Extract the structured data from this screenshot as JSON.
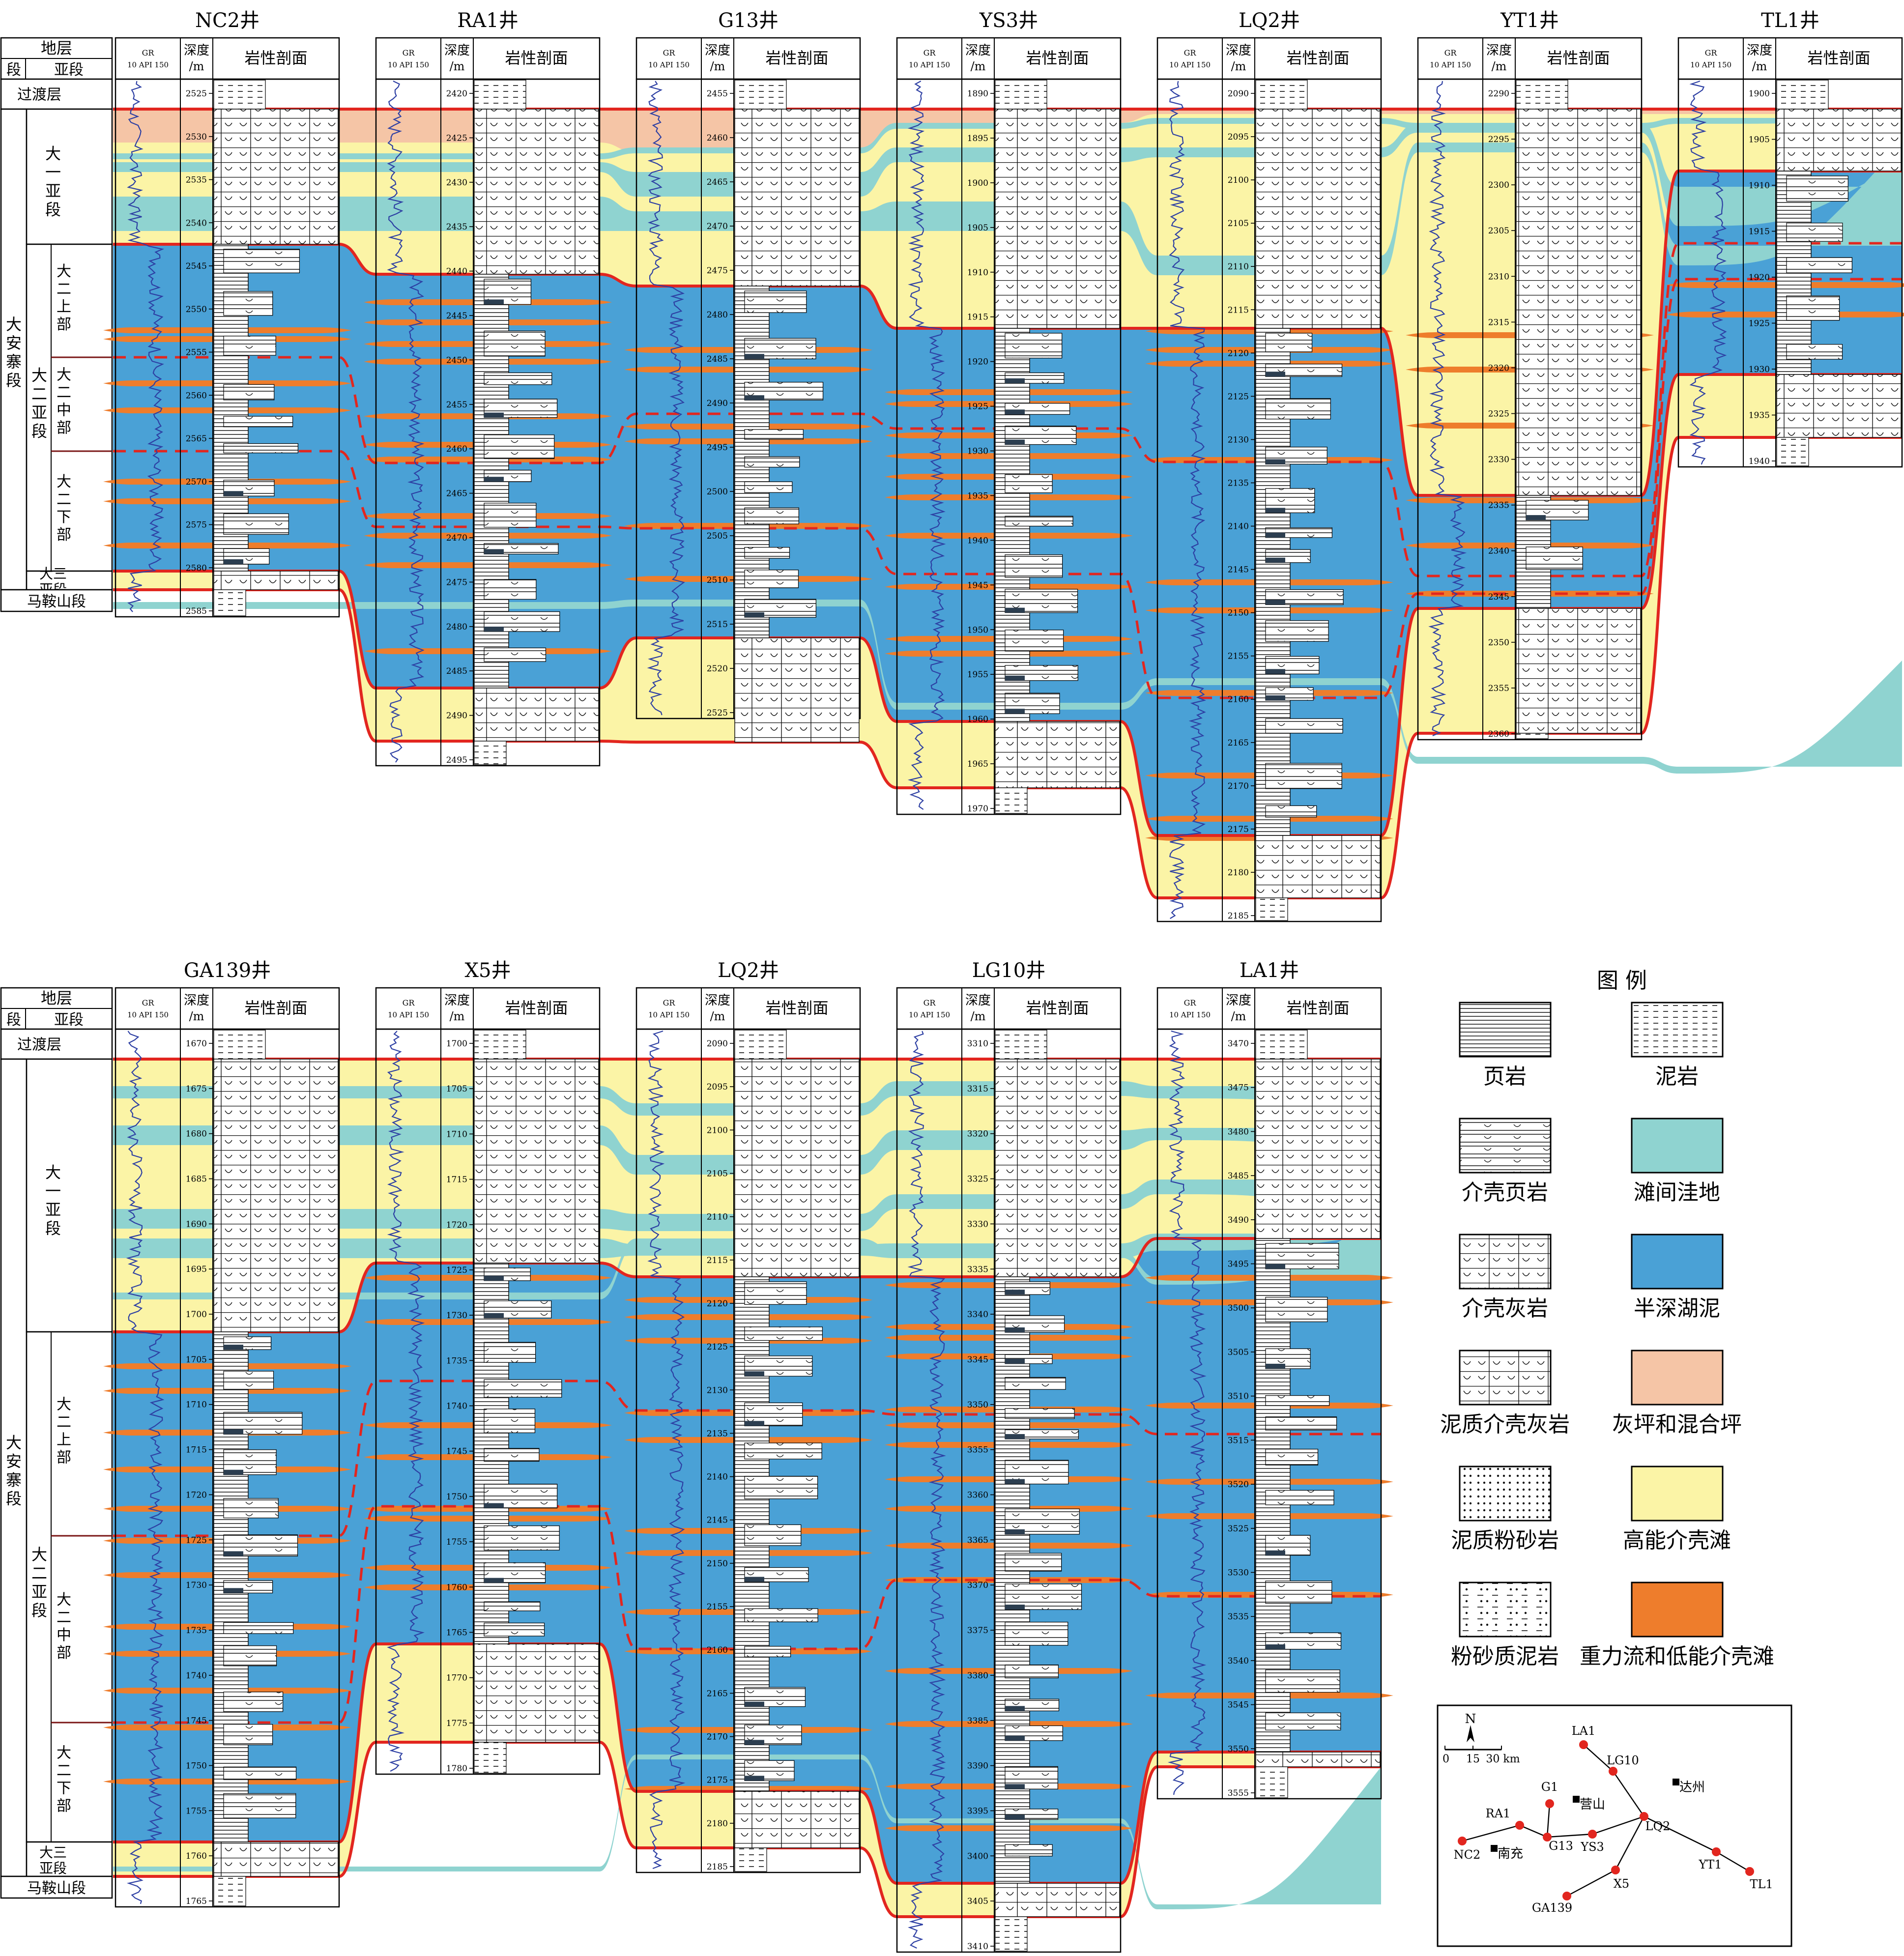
{
  "colors": {
    "interbank": "#8fd3d0",
    "semideep": "#4aa1d6",
    "dam": "#f5c5a6",
    "highbank": "#fbf4a6",
    "gravity": "#ee7d2c",
    "boundary": "#e2261f",
    "gr": "#2d3fa3"
  },
  "headers": {
    "strat": "地层",
    "segment": "段",
    "subsegment": "亚段",
    "gr": "GR",
    "gr_scale": "10  API  150",
    "depth": "深度",
    "depth_unit": "/m",
    "lith": "岩性剖面"
  },
  "strat_labels": {
    "transition": "过渡层",
    "daanzhai": "大安寨段",
    "da1": "大一亚段",
    "da2": "大二亚段",
    "da2_upper": "大二上部",
    "da2_middle": "大二中部",
    "da2_lower": "大二下部",
    "da3": "大三亚段",
    "maanshan": "马鞍山段"
  },
  "panels": [
    {
      "wells": [
        {
          "name": "NC2井",
          "ticks": [
            "2525",
            "2530",
            "2535",
            "2540",
            "2545",
            "2550",
            "2555",
            "2560",
            "2565",
            "2570",
            "2575",
            "2580",
            "2585"
          ]
        },
        {
          "name": "RA1井",
          "ticks": [
            "2420",
            "2425",
            "2430",
            "2435",
            "2440",
            "2445",
            "2450",
            "2455",
            "2460",
            "2465",
            "2470",
            "2475",
            "2480",
            "2485",
            "2490",
            "2495"
          ]
        },
        {
          "name": "G13井",
          "ticks": [
            "2455",
            "2460",
            "2465",
            "2470",
            "2475",
            "2480",
            "2485",
            "2490",
            "2495",
            "2500",
            "2505",
            "2510",
            "2515",
            "2520",
            "2525"
          ]
        },
        {
          "name": "YS3井",
          "ticks": [
            "1890",
            "1895",
            "1900",
            "1905",
            "1910",
            "1915",
            "1920",
            "1925",
            "1930",
            "1935",
            "1940",
            "1945",
            "1950",
            "1955",
            "1960",
            "1965",
            "1970"
          ]
        },
        {
          "name": "LQ2井",
          "ticks": [
            "2090",
            "2095",
            "2100",
            "2105",
            "2110",
            "2115",
            "2120",
            "2125",
            "2130",
            "2135",
            "2140",
            "2145",
            "2150",
            "2155",
            "2160",
            "2165",
            "2170",
            "2175",
            "2180",
            "2185"
          ]
        },
        {
          "name": "YT1井",
          "ticks": [
            "2290",
            "2295",
            "2300",
            "2305",
            "2310",
            "2315",
            "2320",
            "2325",
            "2330",
            "2335",
            "2340",
            "2345",
            "2350",
            "2355",
            "2360"
          ]
        },
        {
          "name": "TL1井",
          "ticks": [
            "1900",
            "1905",
            "1910",
            "1915",
            "1920",
            "1925",
            "1930",
            "1935",
            "1940"
          ]
        }
      ]
    },
    {
      "wells": [
        {
          "name": "GA139井",
          "ticks": [
            "1670",
            "1675",
            "1680",
            "1685",
            "1690",
            "1695",
            "1700",
            "1705",
            "1710",
            "1715",
            "1720",
            "1725",
            "1730",
            "1735",
            "1740",
            "1745",
            "1750",
            "1755",
            "1760",
            "1765"
          ]
        },
        {
          "name": "X5井",
          "ticks": [
            "1700",
            "1705",
            "1710",
            "1715",
            "1720",
            "1725",
            "1730",
            "1735",
            "1740",
            "1745",
            "1750",
            "1755",
            "1760",
            "1765",
            "1770",
            "1775",
            "1780"
          ]
        },
        {
          "name": "LQ2井",
          "ticks": [
            "2090",
            "2095",
            "2100",
            "2105",
            "2110",
            "2115",
            "2120",
            "2125",
            "2130",
            "2135",
            "2140",
            "2145",
            "2150",
            "2155",
            "2160",
            "2165",
            "2170",
            "2175",
            "2180",
            "2185"
          ]
        },
        {
          "name": "LG10井",
          "ticks": [
            "3310",
            "3315",
            "3320",
            "3325",
            "3330",
            "3335",
            "3340",
            "3345",
            "3350",
            "3355",
            "3360",
            "3365",
            "3370",
            "3375",
            "3380",
            "3385",
            "3390",
            "3395",
            "3400",
            "3405",
            "3410"
          ]
        },
        {
          "name": "LA1井",
          "ticks": [
            "3470",
            "3475",
            "3480",
            "3485",
            "3490",
            "3495",
            "3500",
            "3505",
            "3510",
            "3515",
            "3520",
            "3525",
            "3530",
            "3535",
            "3540",
            "3545",
            "3550",
            "3555"
          ]
        }
      ]
    }
  ],
  "legend": {
    "title": "图 例",
    "items": [
      {
        "label": "页岩",
        "kind": "shale"
      },
      {
        "label": "泥岩",
        "kind": "mudstone"
      },
      {
        "label": "介壳页岩",
        "kind": "shellshale"
      },
      {
        "label": "滩间洼地",
        "kind": "interbank"
      },
      {
        "label": "介壳灰岩",
        "kind": "shelllime"
      },
      {
        "label": "半深湖泥",
        "kind": "semideep"
      },
      {
        "label": "泥质介壳灰岩",
        "kind": "muddylime"
      },
      {
        "label": "灰坪和混合坪",
        "kind": "dam"
      },
      {
        "label": "泥质粉砂岩",
        "kind": "muddysilt"
      },
      {
        "label": "高能介壳滩",
        "kind": "highbank"
      },
      {
        "label": "粉砂质泥岩",
        "kind": "siltymud"
      },
      {
        "label": "重力流和低能介壳滩",
        "kind": "gravity"
      }
    ]
  },
  "map": {
    "north": "N",
    "scale_labels": [
      "0",
      "15",
      "30 km"
    ],
    "wells": [
      "LA1",
      "LG10",
      "G1",
      "RA1",
      "G13",
      "YS3",
      "LQ2",
      "YT1",
      "NC2",
      "X5",
      "GA139",
      "TL1"
    ],
    "cities": [
      "营山",
      "达州",
      "南充"
    ]
  }
}
